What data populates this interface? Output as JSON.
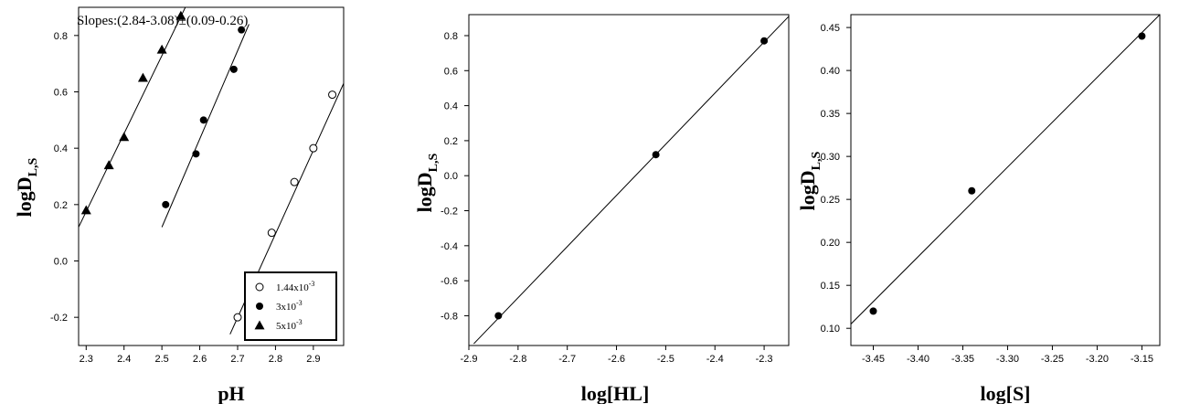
{
  "chart_data": [
    {
      "type": "scatter",
      "title": "",
      "xlabel": "pH",
      "ylabel": "logD",
      "ylabel_sub": "L,S",
      "xlim": [
        2.28,
        2.98
      ],
      "ylim": [
        -0.3,
        0.9
      ],
      "xticks": [
        2.3,
        2.4,
        2.5,
        2.6,
        2.7,
        2.8,
        2.9
      ],
      "yticks": [
        -0.2,
        0.0,
        0.2,
        0.4,
        0.6,
        0.8
      ],
      "ytick_labels": [
        "-0.2",
        "0.0",
        "0.2",
        "0.4",
        "0.6",
        "0.8"
      ],
      "annotation": "Slopes:(2.84-3.08)±(0.09-0.26)",
      "legend_position": "bottom-right",
      "series": [
        {
          "name": "1.44x10",
          "name_sup": "-3",
          "marker": "open-circle",
          "x": [
            2.7,
            2.79,
            2.85,
            2.9,
            2.95
          ],
          "y": [
            -0.2,
            0.1,
            0.28,
            0.4,
            0.59
          ],
          "fit": [
            [
              2.68,
              -0.26
            ],
            [
              2.98,
              0.63
            ]
          ]
        },
        {
          "name": "3x10",
          "name_sup": "-3",
          "marker": "filled-circle",
          "x": [
            2.51,
            2.59,
            2.61,
            2.69,
            2.71
          ],
          "y": [
            0.2,
            0.38,
            0.5,
            0.68,
            0.82
          ],
          "fit": [
            [
              2.5,
              0.12
            ],
            [
              2.73,
              0.84
            ]
          ]
        },
        {
          "name": "5x10",
          "name_sup": "-3",
          "marker": "filled-triangle",
          "x": [
            2.3,
            2.36,
            2.4,
            2.45,
            2.5,
            2.55
          ],
          "y": [
            0.18,
            0.34,
            0.44,
            0.65,
            0.75,
            0.87
          ],
          "fit": [
            [
              2.28,
              0.12
            ],
            [
              2.58,
              0.95
            ]
          ]
        }
      ]
    },
    {
      "type": "scatter",
      "title": "",
      "xlabel": "log[HL]",
      "ylabel": "logD",
      "ylabel_sub": "L,S",
      "xlim": [
        -2.9,
        -2.25
      ],
      "ylim": [
        -0.97,
        0.92
      ],
      "xticks": [
        -2.9,
        -2.8,
        -2.7,
        -2.6,
        -2.5,
        -2.4,
        -2.3
      ],
      "yticks": [
        -0.8,
        -0.6,
        -0.4,
        -0.2,
        0.0,
        0.2,
        0.4,
        0.6,
        0.8
      ],
      "ytick_labels": [
        "-0.8",
        "-0.6",
        "-0.4",
        "-0.2",
        "0.0",
        "0.2",
        "0.4",
        "0.6",
        "0.8"
      ],
      "series": [
        {
          "marker": "filled-circle",
          "x": [
            -2.84,
            -2.52,
            -2.3
          ],
          "y": [
            -0.8,
            0.12,
            0.77
          ],
          "fit": [
            [
              -2.89,
              -0.96
            ],
            [
              -2.25,
              0.91
            ]
          ]
        }
      ]
    },
    {
      "type": "scatter",
      "title": "",
      "xlabel": "log[S]",
      "ylabel": "logD",
      "ylabel_sub": "L,S",
      "xlim": [
        -3.475,
        -3.13
      ],
      "ylim": [
        0.08,
        0.465
      ],
      "xticks": [
        -3.45,
        -3.4,
        -3.35,
        -3.3,
        -3.25,
        -3.2,
        -3.15
      ],
      "yticks": [
        0.1,
        0.15,
        0.2,
        0.25,
        0.3,
        0.35,
        0.4,
        0.45
      ],
      "ytick_labels": [
        "0.10",
        "0.15",
        "0.20",
        "0.25",
        "0.30",
        "0.35",
        "0.40",
        "0.45"
      ],
      "series": [
        {
          "marker": "filled-circle",
          "x": [
            -3.45,
            -3.34,
            -3.15
          ],
          "y": [
            0.12,
            0.26,
            0.44
          ],
          "fit": [
            [
              -3.475,
              0.105
            ],
            [
              -3.13,
              0.465
            ]
          ]
        }
      ]
    }
  ]
}
